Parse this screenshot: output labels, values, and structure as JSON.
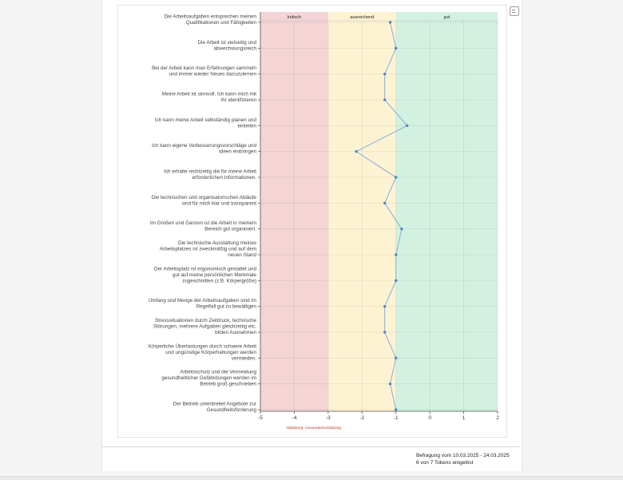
{
  "chart_data": {
    "type": "line",
    "orientation": "horizontal",
    "zones": [
      {
        "label": "kritisch",
        "from": -5,
        "to": -3,
        "color": "#f4d4d4"
      },
      {
        "label": "ausreichend",
        "from": -3,
        "to": -1,
        "color": "#fdf3d3"
      },
      {
        "label": "gut",
        "from": -1,
        "to": 2,
        "color": "#d3f1e0"
      }
    ],
    "categories": [
      "Die Arbeitsaufgaben entsprechen meinen Qualifikationen und Fähigkeiten",
      "Die Arbeit ist vielseitig und abwechslungsreich",
      "Bei der Arbeit kann man Erfahrungen sammeln und immer wieder Neues dazuzulernen",
      "Meine Arbeit ist sinnvoll. Ich kann mich mit ihr identifizieren",
      "Ich kann meine Arbeit selbständig planen und einteilen",
      "Ich kann eigene Verbesserungsvorschläge und Ideen einbringen",
      "Ich erhalte rechtzeitig die für meine Arbeit erforderlichen Informationen.",
      "Die technischen und organisatorischen Abläufe sind für mich klar und transparent",
      "Im Großen und Ganzen ist die Arbeit in meinem Bereich gut organisiert.",
      "Die technische Ausstattung meines Arbeitsplatzes ist zweckmäßig und auf dem neuen Stand",
      "Der Arbeitsplatz ist ergonomisch gestaltet und gut auf meine persönlichen Merkmale zugeschnitten (z.B. Körpergröße)",
      "Umfang und Menge der Arbeitsaufgaben sind im Regelfall gut zu bewältigen",
      "Stresssituationen durch Zeitdruck, technische Störungen, mehrere Aufgaben gleichzeitig etc. bilden Ausnahmen",
      "Körperliche Überlastungen durch schwere Arbeit und ungünstige Körperhaltungen werden vermieden.",
      "Arbeitsschutz und die Vermeidung gesundheitlicher Gefährdungen werden im Betrieb groß geschrieben",
      "Der Betrieb unterbreitet Angebote zur Gesundheitsförderung"
    ],
    "values": [
      -1.17,
      -1.0,
      -1.33,
      -1.33,
      -0.67,
      -2.17,
      -1.0,
      -1.33,
      -0.83,
      -1.0,
      -1.0,
      -1.33,
      -1.33,
      -1.0,
      -1.17,
      -1.0
    ],
    "xlim": [
      -5,
      2
    ],
    "xticks": [
      "-5",
      "-4",
      "-3",
      "-2",
      "-1",
      "0",
      "1",
      "2"
    ],
    "grid": true,
    "series_color": "#8fb3d6",
    "marker_color": "#4f86c6",
    "caption": "Abbildung: Gesamteinschätzung",
    "caption_color": "#c0392b"
  },
  "survey": {
    "period": "Befragung vom 10.03.2025 - 24.03.2025",
    "tokens": "6 von 7 Tokens eingelöst"
  },
  "icons": {
    "print": "print-icon"
  }
}
